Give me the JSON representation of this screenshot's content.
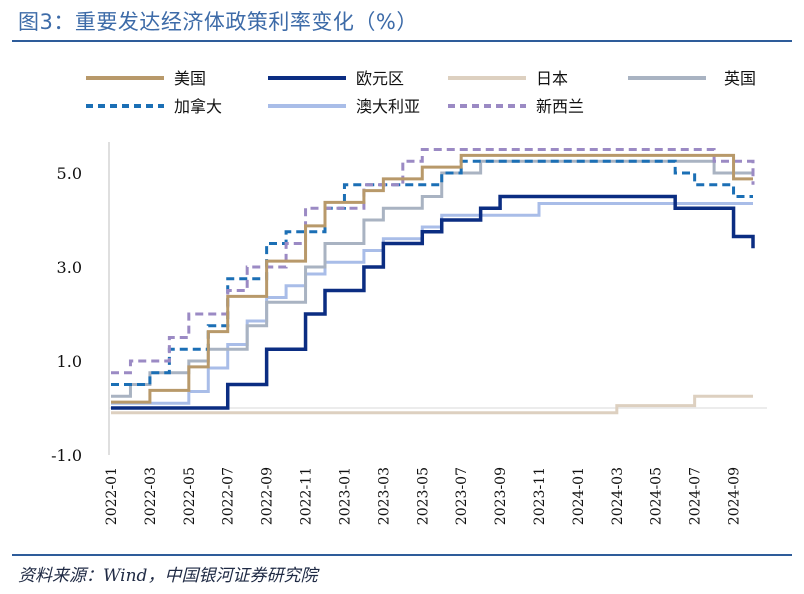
{
  "title": "图3：重要发达经济体政策利率变化（%）",
  "source": "资料来源：Wind，中国银河证券研究院",
  "chart_data": {
    "type": "line",
    "step": true,
    "ylim": [
      -1.0,
      6.0
    ],
    "yticks": [
      "5.0",
      "3.0",
      "1.0",
      "-1.0"
    ],
    "ytick_values": [
      5.0,
      3.0,
      1.0,
      -1.0
    ],
    "xticks": [
      "2022-01",
      "2022-03",
      "2022-05",
      "2022-07",
      "2022-09",
      "2022-11",
      "2023-01",
      "2023-03",
      "2023-05",
      "2023-07",
      "2023-09",
      "2023-11",
      "2024-01",
      "2024-03",
      "2024-05",
      "2024-07",
      "2024-09"
    ],
    "x_range": [
      "2022-01",
      "2024-10"
    ],
    "grid": false,
    "legend_position": "top",
    "series": [
      {
        "name": "美国",
        "color": "#b8996a",
        "dash": "solid",
        "points": [
          [
            "2022-01",
            0.125
          ],
          [
            "2022-03",
            0.375
          ],
          [
            "2022-05",
            0.875
          ],
          [
            "2022-06",
            1.625
          ],
          [
            "2022-07",
            2.375
          ],
          [
            "2022-09",
            3.125
          ],
          [
            "2022-11",
            3.875
          ],
          [
            "2022-12",
            4.375
          ],
          [
            "2023-02",
            4.625
          ],
          [
            "2023-03",
            4.875
          ],
          [
            "2023-05",
            5.125
          ],
          [
            "2023-07",
            5.375
          ],
          [
            "2024-09",
            4.875
          ],
          [
            "2024-10",
            4.875
          ]
        ]
      },
      {
        "name": "欧元区",
        "color": "#0b2d82",
        "dash": "solid",
        "points": [
          [
            "2022-01",
            0.0
          ],
          [
            "2022-07",
            0.5
          ],
          [
            "2022-09",
            1.25
          ],
          [
            "2022-11",
            2.0
          ],
          [
            "2022-12",
            2.5
          ],
          [
            "2023-02",
            3.0
          ],
          [
            "2023-03",
            3.5
          ],
          [
            "2023-05",
            3.75
          ],
          [
            "2023-06",
            4.0
          ],
          [
            "2023-08",
            4.25
          ],
          [
            "2023-09",
            4.5
          ],
          [
            "2024-06",
            4.25
          ],
          [
            "2024-09",
            3.65
          ],
          [
            "2024-10",
            3.4
          ]
        ]
      },
      {
        "name": "日本",
        "color": "#ddd0c0",
        "dash": "solid",
        "points": [
          [
            "2022-01",
            -0.1
          ],
          [
            "2024-03",
            0.05
          ],
          [
            "2024-07",
            0.25
          ]
        ]
      },
      {
        "name": "英国",
        "color": "#a9b3c2",
        "dash": "solid",
        "points": [
          [
            "2022-01",
            0.25
          ],
          [
            "2022-02",
            0.5
          ],
          [
            "2022-03",
            0.75
          ],
          [
            "2022-05",
            1.0
          ],
          [
            "2022-06",
            1.25
          ],
          [
            "2022-08",
            1.75
          ],
          [
            "2022-09",
            2.25
          ],
          [
            "2022-11",
            3.0
          ],
          [
            "2022-12",
            3.5
          ],
          [
            "2023-02",
            4.0
          ],
          [
            "2023-03",
            4.25
          ],
          [
            "2023-05",
            4.5
          ],
          [
            "2023-06",
            5.0
          ],
          [
            "2023-08",
            5.25
          ],
          [
            "2024-08",
            5.0
          ],
          [
            "2024-10",
            5.0
          ]
        ]
      },
      {
        "name": "加拿大",
        "color": "#1b6fb5",
        "dash": "dashed",
        "points": [
          [
            "2022-01",
            0.5
          ],
          [
            "2022-03",
            0.75
          ],
          [
            "2022-04",
            1.25
          ],
          [
            "2022-06",
            1.75
          ],
          [
            "2022-07",
            2.75
          ],
          [
            "2022-09",
            3.5
          ],
          [
            "2022-10",
            3.75
          ],
          [
            "2022-12",
            4.25
          ],
          [
            "2023-01",
            4.75
          ],
          [
            "2023-06",
            5.0
          ],
          [
            "2023-07",
            5.25
          ],
          [
            "2024-06",
            5.0
          ],
          [
            "2024-07",
            4.75
          ],
          [
            "2024-09",
            4.5
          ],
          [
            "2024-10",
            4.5
          ]
        ]
      },
      {
        "name": "澳大利亚",
        "color": "#a9bde8",
        "dash": "solid",
        "points": [
          [
            "2022-01",
            0.1
          ],
          [
            "2022-05",
            0.35
          ],
          [
            "2022-06",
            0.85
          ],
          [
            "2022-07",
            1.35
          ],
          [
            "2022-08",
            1.85
          ],
          [
            "2022-09",
            2.35
          ],
          [
            "2022-10",
            2.6
          ],
          [
            "2022-11",
            2.85
          ],
          [
            "2022-12",
            3.1
          ],
          [
            "2023-02",
            3.35
          ],
          [
            "2023-03",
            3.6
          ],
          [
            "2023-05",
            3.85
          ],
          [
            "2023-06",
            4.1
          ],
          [
            "2023-11",
            4.35
          ],
          [
            "2024-10",
            4.35
          ]
        ]
      },
      {
        "name": "新西兰",
        "color": "#9b8ac4",
        "dash": "dashed",
        "points": [
          [
            "2022-01",
            0.75
          ],
          [
            "2022-02",
            1.0
          ],
          [
            "2022-04",
            1.5
          ],
          [
            "2022-05",
            2.0
          ],
          [
            "2022-07",
            2.5
          ],
          [
            "2022-08",
            3.0
          ],
          [
            "2022-10",
            3.5
          ],
          [
            "2022-11",
            4.25
          ],
          [
            "2023-02",
            4.75
          ],
          [
            "2023-04",
            5.25
          ],
          [
            "2023-05",
            5.5
          ],
          [
            "2024-08",
            5.25
          ],
          [
            "2024-10",
            4.75
          ]
        ]
      }
    ]
  }
}
